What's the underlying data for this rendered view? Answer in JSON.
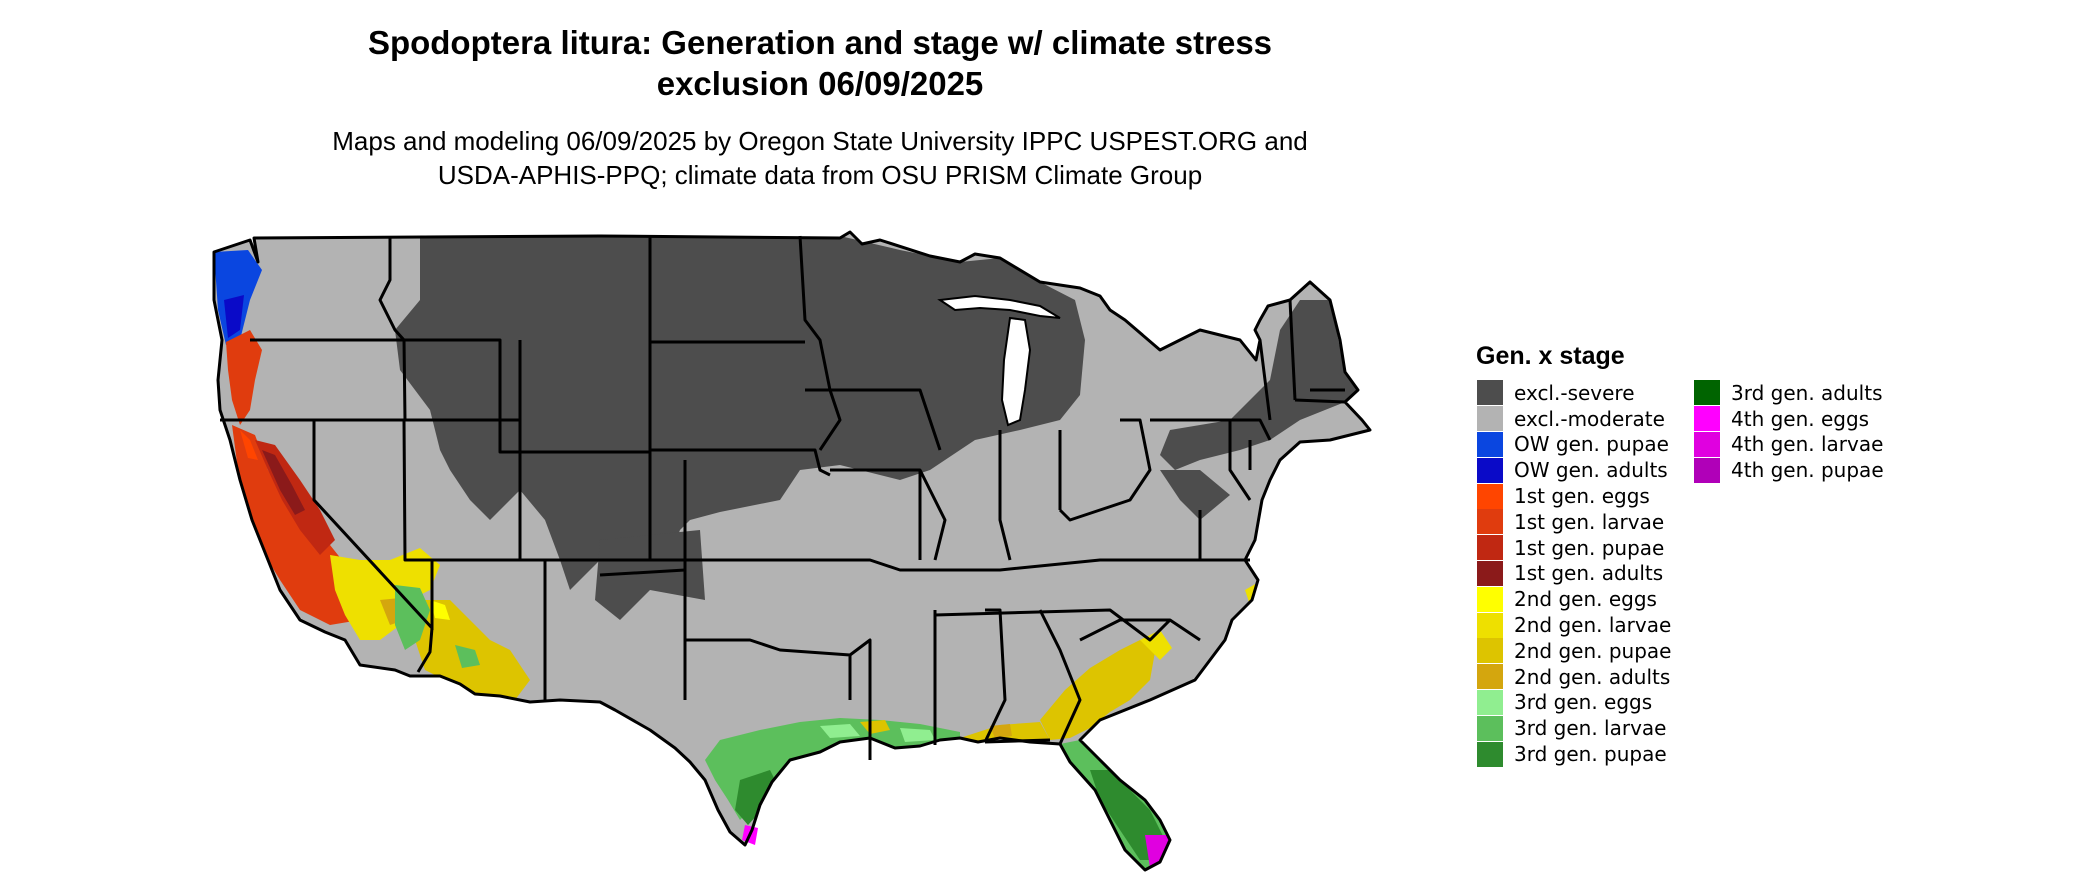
{
  "title_line1": "Spodoptera litura: Generation and stage w/ climate stress",
  "title_line2": "exclusion 06/09/2025",
  "subtitle_line1": "Maps and modeling 06/09/2025 by Oregon State University IPPC USPEST.ORG and",
  "subtitle_line2": "USDA-APHIS-PPQ; climate data from OSU PRISM Climate Group",
  "legend": {
    "title": "Gen. x stage",
    "columns": [
      [
        {
          "label": "excl.-severe",
          "color": "#4d4d4d"
        },
        {
          "label": "excl.-moderate",
          "color": "#b3b3b3"
        },
        {
          "label": "OW gen. pupae",
          "color": "#0a46e0"
        },
        {
          "label": "OW gen. adults",
          "color": "#0a0ac8"
        },
        {
          "label": "1st gen. eggs",
          "color": "#ff4500"
        },
        {
          "label": "1st gen. larvae",
          "color": "#e03c0e"
        },
        {
          "label": "1st gen. pupae",
          "color": "#c02812"
        },
        {
          "label": "1st gen. adults",
          "color": "#8b1a1a"
        },
        {
          "label": "2nd gen. eggs",
          "color": "#ffff00"
        },
        {
          "label": "2nd gen. larvae",
          "color": "#eee000"
        },
        {
          "label": "2nd gen. pupae",
          "color": "#ddc400"
        },
        {
          "label": "2nd gen. adults",
          "color": "#d4a60e"
        },
        {
          "label": "3rd gen. eggs",
          "color": "#90ee90"
        },
        {
          "label": "3rd gen. larvae",
          "color": "#5cbf5c"
        },
        {
          "label": "3rd gen. pupae",
          "color": "#2e8b2e"
        }
      ],
      [
        {
          "label": "3rd gen. adults",
          "color": "#006400"
        },
        {
          "label": "4th gen. eggs",
          "color": "#ff00ff"
        },
        {
          "label": "4th gen. larvae",
          "color": "#e000e0"
        },
        {
          "label": "4th gen. pupae",
          "color": "#b000b8"
        }
      ]
    ]
  }
}
